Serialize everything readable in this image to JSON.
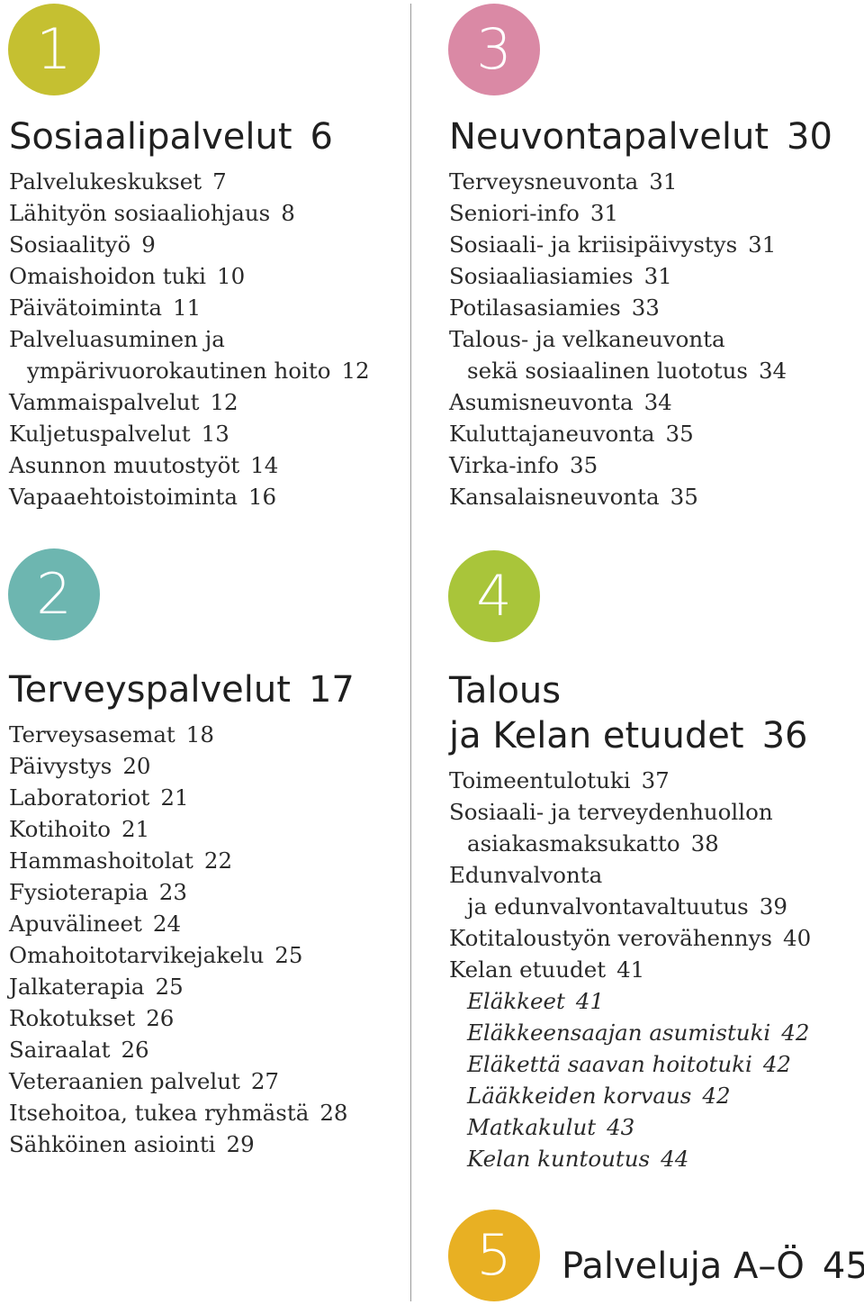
{
  "colors": {
    "circle1": "#c5c031",
    "circle2": "#6db6b0",
    "circle3": "#da89a5",
    "circle4": "#a9c53a",
    "circle5": "#e8b023",
    "divider": "#9a9a9a"
  },
  "sections": [
    {
      "number": "1",
      "title": "Sosiaalipalvelut",
      "page": "6",
      "entries": [
        {
          "text": "Palvelukeskukset",
          "page": "7"
        },
        {
          "text": "Lähityön sosiaaliohjaus",
          "page": "8"
        },
        {
          "text": "Sosiaalityö",
          "page": "9"
        },
        {
          "text": "Omaishoidon tuki",
          "page": "10"
        },
        {
          "text": "Päivätoiminta",
          "page": "11"
        },
        {
          "text": "Palveluasuminen ja",
          "page": ""
        },
        {
          "text": "ympärivuorokautinen hoito",
          "page": "12"
        },
        {
          "text": "Vammaispalvelut",
          "page": "12"
        },
        {
          "text": "Kuljetuspalvelut",
          "page": "13"
        },
        {
          "text": "Asunnon muutostyöt",
          "page": "14"
        },
        {
          "text": "Vapaaehtoistoiminta",
          "page": "16"
        }
      ]
    },
    {
      "number": "2",
      "title": "Terveyspalvelut",
      "page": "17",
      "entries": [
        {
          "text": "Terveysasemat",
          "page": "18"
        },
        {
          "text": "Päivystys",
          "page": "20"
        },
        {
          "text": "Laboratoriot",
          "page": "21"
        },
        {
          "text": "Kotihoito",
          "page": "21"
        },
        {
          "text": "Hammashoitolat",
          "page": "22"
        },
        {
          "text": "Fysioterapia",
          "page": "23"
        },
        {
          "text": "Apuvälineet",
          "page": "24"
        },
        {
          "text": "Omahoitotarvikejakelu",
          "page": "25"
        },
        {
          "text": "Jalkaterapia",
          "page": "25"
        },
        {
          "text": "Rokotukset",
          "page": "26"
        },
        {
          "text": "Sairaalat",
          "page": "26"
        },
        {
          "text": "Veteraanien palvelut",
          "page": "27"
        },
        {
          "text": "Itsehoitoa, tukea ryhmästä",
          "page": "28"
        },
        {
          "text": "Sähköinen asiointi",
          "page": "29"
        }
      ]
    },
    {
      "number": "3",
      "title": "Neuvontapalvelut",
      "page": "30",
      "entries": [
        {
          "text": "Terveysneuvonta",
          "page": "31"
        },
        {
          "text": "Seniori-info",
          "page": "31"
        },
        {
          "text": "Sosiaali- ja kriisipäivystys",
          "page": "31"
        },
        {
          "text": "Sosiaaliasiamies",
          "page": "31"
        },
        {
          "text": "Potilasasiamies",
          "page": "33"
        },
        {
          "text": "Talous- ja velkaneuvonta",
          "page": ""
        },
        {
          "text": "sekä sosiaalinen luototus",
          "page": "34"
        },
        {
          "text": "Asumisneuvonta",
          "page": "34"
        },
        {
          "text": "Kuluttajaneuvonta",
          "page": "35"
        },
        {
          "text": "Virka-info",
          "page": "35"
        },
        {
          "text": "Kansalaisneuvonta",
          "page": "35"
        }
      ]
    },
    {
      "number": "4",
      "title_line1": "Talous",
      "title_line2": "ja Kelan etuudet",
      "page": "36",
      "entries": [
        {
          "text": "Toimeentulotuki",
          "page": "37"
        },
        {
          "text": "Sosiaali- ja terveydenhuollon",
          "page": ""
        },
        {
          "text": "asiakasmaksukatto",
          "page": "38"
        },
        {
          "text": "Edunvalvonta",
          "page": ""
        },
        {
          "text": "ja edunvalvontavaltuutus",
          "page": "39"
        },
        {
          "text": "Kotitaloustyön verovähennys",
          "page": "40"
        },
        {
          "text": "Kelan etuudet",
          "page": "41"
        },
        {
          "text": "Eläkkeet",
          "page": "41"
        },
        {
          "text": "Eläkkeensaajan asumistuki",
          "page": "42"
        },
        {
          "text": "Eläkettä saavan hoitotuki",
          "page": "42"
        },
        {
          "text": "Lääkkeiden korvaus",
          "page": "42"
        },
        {
          "text": "Matkakulut",
          "page": "43"
        },
        {
          "text": "Kelan kuntoutus",
          "page": "44"
        }
      ]
    },
    {
      "number": "5",
      "title": "Palveluja A–Ö",
      "page": "45"
    }
  ]
}
